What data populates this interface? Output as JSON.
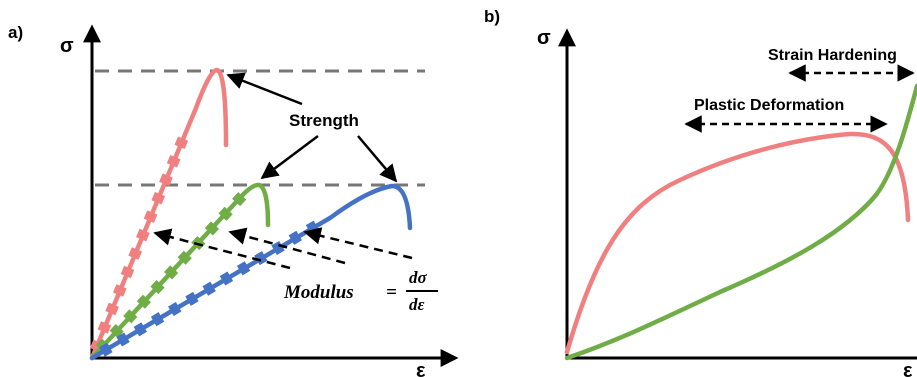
{
  "panel_a": {
    "label": "a)",
    "y_axis": "σ",
    "x_axis": "ε",
    "strength_label": "Strength",
    "modulus_label": "Modulus",
    "equals": "=",
    "numerator": "dσ",
    "denominator": "dε"
  },
  "panel_b": {
    "label": "b)",
    "y_axis": "σ",
    "x_axis": "ε",
    "strain_hardening_label": "Strain Hardening",
    "plastic_deformation_label": "Plastic Deformation"
  },
  "colors": {
    "red": "#f08080",
    "green": "#70ad47",
    "blue": "#4472c4",
    "gray_dash": "#777777",
    "axis": "#000000"
  }
}
